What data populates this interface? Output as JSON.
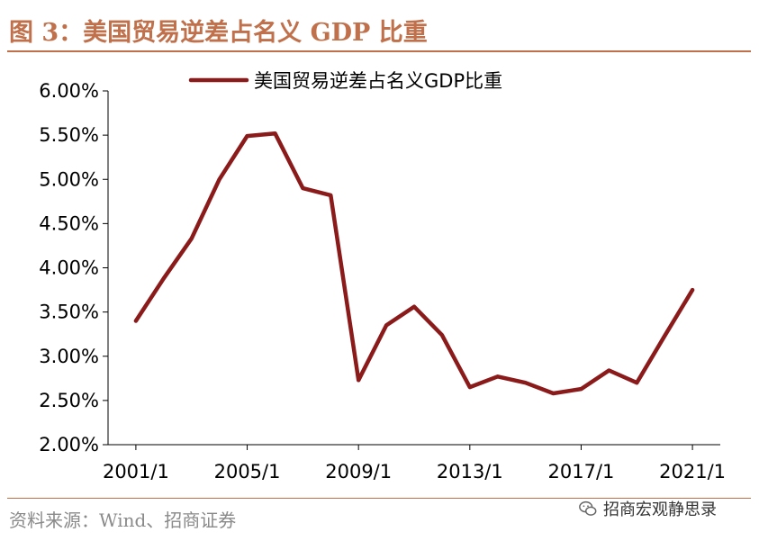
{
  "figure": {
    "title": "图 3：美国贸易逆差占名义 GDP 比重",
    "source": "资料来源：Wind、招商证券",
    "watermark": "招商宏观静思录",
    "watermark_icon": "wechat-icon"
  },
  "chart_data": {
    "type": "line",
    "title": "",
    "xlabel": "",
    "ylabel": "",
    "x_tick_labels": [
      "2001/1",
      "2005/1",
      "2009/1",
      "2013/1",
      "2017/1",
      "2021/1"
    ],
    "y_tick_labels": [
      "2.00%",
      "2.50%",
      "3.00%",
      "3.50%",
      "4.00%",
      "4.50%",
      "5.00%",
      "5.50%",
      "6.00%"
    ],
    "ylim": [
      2.0,
      6.0
    ],
    "xlim": [
      2000,
      2022
    ],
    "grid": false,
    "legend": "top-center",
    "series": [
      {
        "name": "美国贸易逆差占名义GDP比重",
        "color": "#8b1a1a",
        "x": [
          2001,
          2002,
          2003,
          2004,
          2005,
          2006,
          2007,
          2008,
          2009,
          2010,
          2011,
          2012,
          2013,
          2014,
          2015,
          2016,
          2017,
          2018,
          2019,
          2020,
          2021
        ],
        "values": [
          3.4,
          3.88,
          4.33,
          5.0,
          5.49,
          5.52,
          4.9,
          4.82,
          2.73,
          3.35,
          3.56,
          3.24,
          2.65,
          2.77,
          2.7,
          2.58,
          2.63,
          2.84,
          2.7,
          3.23,
          3.75
        ]
      }
    ]
  }
}
